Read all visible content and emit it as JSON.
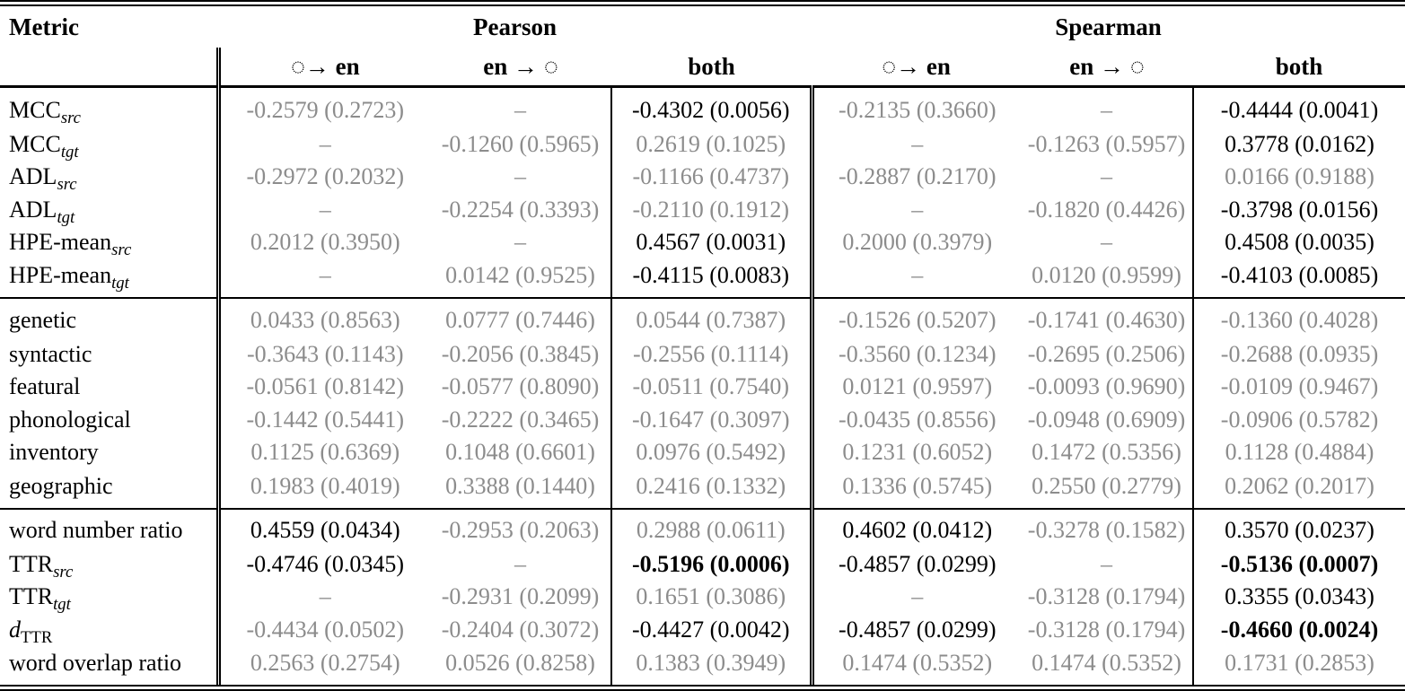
{
  "header": {
    "metric": "Metric",
    "pearson": "Pearson",
    "spearman": "Spearman",
    "sub_to_en": "◌→ en",
    "sub_from_en": "en → ◌",
    "sub_both": "both"
  },
  "colors": {
    "muted_value_text": "#8c8c8c",
    "significant_value_text": "#000000",
    "rule_color": "#000000"
  },
  "blocks": [
    {
      "rows": [
        {
          "metric": {
            "main": "MCC",
            "sub": "src"
          },
          "cells": [
            {
              "t": "-0.2579 (0.2723)",
              "s": "c-gray"
            },
            {
              "t": "–",
              "s": "c-gray"
            },
            {
              "t": "-0.4302 (0.0056)",
              "s": "c-black"
            },
            {
              "t": "-0.2135 (0.3660)",
              "s": "c-gray"
            },
            {
              "t": "–",
              "s": "c-gray"
            },
            {
              "t": "-0.4444 (0.0041)",
              "s": "c-black"
            }
          ]
        },
        {
          "metric": {
            "main": "MCC",
            "sub": "tgt"
          },
          "cells": [
            {
              "t": "–",
              "s": "c-gray"
            },
            {
              "t": "-0.1260 (0.5965)",
              "s": "c-gray"
            },
            {
              "t": "0.2619 (0.1025)",
              "s": "c-gray"
            },
            {
              "t": "–",
              "s": "c-gray"
            },
            {
              "t": "-0.1263 (0.5957)",
              "s": "c-gray"
            },
            {
              "t": "0.3778 (0.0162)",
              "s": "c-black"
            }
          ]
        },
        {
          "metric": {
            "main": "ADL",
            "sub": "src"
          },
          "cells": [
            {
              "t": "-0.2972 (0.2032)",
              "s": "c-gray"
            },
            {
              "t": "–",
              "s": "c-gray"
            },
            {
              "t": "-0.1166 (0.4737)",
              "s": "c-gray"
            },
            {
              "t": "-0.2887 (0.2170)",
              "s": "c-gray"
            },
            {
              "t": "–",
              "s": "c-gray"
            },
            {
              "t": "0.0166 (0.9188)",
              "s": "c-gray"
            }
          ]
        },
        {
          "metric": {
            "main": "ADL",
            "sub": "tgt"
          },
          "cells": [
            {
              "t": "–",
              "s": "c-gray"
            },
            {
              "t": "-0.2254 (0.3393)",
              "s": "c-gray"
            },
            {
              "t": "-0.2110 (0.1912)",
              "s": "c-gray"
            },
            {
              "t": "–",
              "s": "c-gray"
            },
            {
              "t": "-0.1820 (0.4426)",
              "s": "c-gray"
            },
            {
              "t": "-0.3798 (0.0156)",
              "s": "c-black"
            }
          ]
        },
        {
          "metric": {
            "main": "HPE-mean",
            "sub": "src"
          },
          "cells": [
            {
              "t": "0.2012 (0.3950)",
              "s": "c-gray"
            },
            {
              "t": "–",
              "s": "c-gray"
            },
            {
              "t": "0.4567 (0.0031)",
              "s": "c-black"
            },
            {
              "t": "0.2000 (0.3979)",
              "s": "c-gray"
            },
            {
              "t": "–",
              "s": "c-gray"
            },
            {
              "t": "0.4508 (0.0035)",
              "s": "c-black"
            }
          ]
        },
        {
          "metric": {
            "main": "HPE-mean",
            "sub": "tgt"
          },
          "cells": [
            {
              "t": "–",
              "s": "c-gray"
            },
            {
              "t": "0.0142 (0.9525)",
              "s": "c-gray"
            },
            {
              "t": "-0.4115 (0.0083)",
              "s": "c-black"
            },
            {
              "t": "–",
              "s": "c-gray"
            },
            {
              "t": "0.0120 (0.9599)",
              "s": "c-gray"
            },
            {
              "t": "-0.4103 (0.0085)",
              "s": "c-black"
            }
          ]
        }
      ]
    },
    {
      "rows": [
        {
          "metric": {
            "main": "genetic",
            "sub": ""
          },
          "cells": [
            {
              "t": "0.0433 (0.8563)",
              "s": "c-gray"
            },
            {
              "t": "0.0777 (0.7446)",
              "s": "c-gray"
            },
            {
              "t": "0.0544 (0.7387)",
              "s": "c-gray"
            },
            {
              "t": "-0.1526 (0.5207)",
              "s": "c-gray"
            },
            {
              "t": "-0.1741 (0.4630)",
              "s": "c-gray"
            },
            {
              "t": "-0.1360 (0.4028)",
              "s": "c-gray"
            }
          ]
        },
        {
          "metric": {
            "main": "syntactic",
            "sub": ""
          },
          "cells": [
            {
              "t": "-0.3643 (0.1143)",
              "s": "c-gray"
            },
            {
              "t": "-0.2056 (0.3845)",
              "s": "c-gray"
            },
            {
              "t": "-0.2556 (0.1114)",
              "s": "c-gray"
            },
            {
              "t": "-0.3560 (0.1234)",
              "s": "c-gray"
            },
            {
              "t": "-0.2695 (0.2506)",
              "s": "c-gray"
            },
            {
              "t": "-0.2688 (0.0935)",
              "s": "c-gray"
            }
          ]
        },
        {
          "metric": {
            "main": "featural",
            "sub": ""
          },
          "cells": [
            {
              "t": "-0.0561 (0.8142)",
              "s": "c-gray"
            },
            {
              "t": "-0.0577 (0.8090)",
              "s": "c-gray"
            },
            {
              "t": "-0.0511 (0.7540)",
              "s": "c-gray"
            },
            {
              "t": "0.0121 (0.9597)",
              "s": "c-gray"
            },
            {
              "t": "-0.0093 (0.9690)",
              "s": "c-gray"
            },
            {
              "t": "-0.0109 (0.9467)",
              "s": "c-gray"
            }
          ]
        },
        {
          "metric": {
            "main": "phonological",
            "sub": ""
          },
          "cells": [
            {
              "t": "-0.1442 (0.5441)",
              "s": "c-gray"
            },
            {
              "t": "-0.2222 (0.3465)",
              "s": "c-gray"
            },
            {
              "t": "-0.1647 (0.3097)",
              "s": "c-gray"
            },
            {
              "t": "-0.0435 (0.8556)",
              "s": "c-gray"
            },
            {
              "t": "-0.0948 (0.6909)",
              "s": "c-gray"
            },
            {
              "t": "-0.0906 (0.5782)",
              "s": "c-gray"
            }
          ]
        },
        {
          "metric": {
            "main": "inventory",
            "sub": ""
          },
          "cells": [
            {
              "t": "0.1125 (0.6369)",
              "s": "c-gray"
            },
            {
              "t": "0.1048 (0.6601)",
              "s": "c-gray"
            },
            {
              "t": "0.0976 (0.5492)",
              "s": "c-gray"
            },
            {
              "t": "0.1231 (0.6052)",
              "s": "c-gray"
            },
            {
              "t": "0.1472 (0.5356)",
              "s": "c-gray"
            },
            {
              "t": "0.1128 (0.4884)",
              "s": "c-gray"
            }
          ]
        },
        {
          "metric": {
            "main": "geographic",
            "sub": ""
          },
          "cells": [
            {
              "t": "0.1983 (0.4019)",
              "s": "c-gray"
            },
            {
              "t": "0.3388 (0.1440)",
              "s": "c-gray"
            },
            {
              "t": "0.2416 (0.1332)",
              "s": "c-gray"
            },
            {
              "t": "0.1336 (0.5745)",
              "s": "c-gray"
            },
            {
              "t": "0.2550 (0.2779)",
              "s": "c-gray"
            },
            {
              "t": "0.2062 (0.2017)",
              "s": "c-gray"
            }
          ]
        }
      ]
    },
    {
      "rows": [
        {
          "metric": {
            "main": "word number ratio",
            "sub": ""
          },
          "cells": [
            {
              "t": "0.4559 (0.0434)",
              "s": "c-black"
            },
            {
              "t": "-0.2953 (0.2063)",
              "s": "c-gray"
            },
            {
              "t": "0.2988 (0.0611)",
              "s": "c-gray"
            },
            {
              "t": "0.4602 (0.0412)",
              "s": "c-black"
            },
            {
              "t": "-0.3278 (0.1582)",
              "s": "c-gray"
            },
            {
              "t": "0.3570 (0.0237)",
              "s": "c-black"
            }
          ]
        },
        {
          "metric": {
            "main": "TTR",
            "sub": "src"
          },
          "cells": [
            {
              "t": "-0.4746 (0.0345)",
              "s": "c-black"
            },
            {
              "t": "–",
              "s": "c-gray"
            },
            {
              "t": "-0.5196 (0.0006)",
              "s": "c-bold"
            },
            {
              "t": "-0.4857 (0.0299)",
              "s": "c-black"
            },
            {
              "t": "–",
              "s": "c-gray"
            },
            {
              "t": "-0.5136 (0.0007)",
              "s": "c-bold"
            }
          ]
        },
        {
          "metric": {
            "main": "TTR",
            "sub": "tgt"
          },
          "cells": [
            {
              "t": "–",
              "s": "c-gray"
            },
            {
              "t": "-0.2931 (0.2099)",
              "s": "c-gray"
            },
            {
              "t": "0.1651 (0.3086)",
              "s": "c-gray"
            },
            {
              "t": "–",
              "s": "c-gray"
            },
            {
              "t": "-0.3128 (0.1794)",
              "s": "c-gray"
            },
            {
              "t": "0.3355 (0.0343)",
              "s": "c-black"
            }
          ]
        },
        {
          "metric": {
            "main": "d",
            "sub": "TTR"
          },
          "cells": [
            {
              "t": "-0.4434 (0.0502)",
              "s": "c-gray"
            },
            {
              "t": "-0.2404 (0.3072)",
              "s": "c-gray"
            },
            {
              "t": "-0.4427 (0.0042)",
              "s": "c-black"
            },
            {
              "t": "-0.4857 (0.0299)",
              "s": "c-black"
            },
            {
              "t": "-0.3128 (0.1794)",
              "s": "c-gray"
            },
            {
              "t": "-0.4660 (0.0024)",
              "s": "c-bold"
            }
          ]
        },
        {
          "metric": {
            "main": "word overlap ratio",
            "sub": ""
          },
          "cells": [
            {
              "t": "0.2563 (0.2754)",
              "s": "c-gray"
            },
            {
              "t": "0.0526 (0.8258)",
              "s": "c-gray"
            },
            {
              "t": "0.1383 (0.3949)",
              "s": "c-gray"
            },
            {
              "t": "0.1474 (0.5352)",
              "s": "c-gray"
            },
            {
              "t": "0.1474 (0.5352)",
              "s": "c-gray"
            },
            {
              "t": "0.1731 (0.2853)",
              "s": "c-gray"
            }
          ]
        }
      ]
    }
  ]
}
